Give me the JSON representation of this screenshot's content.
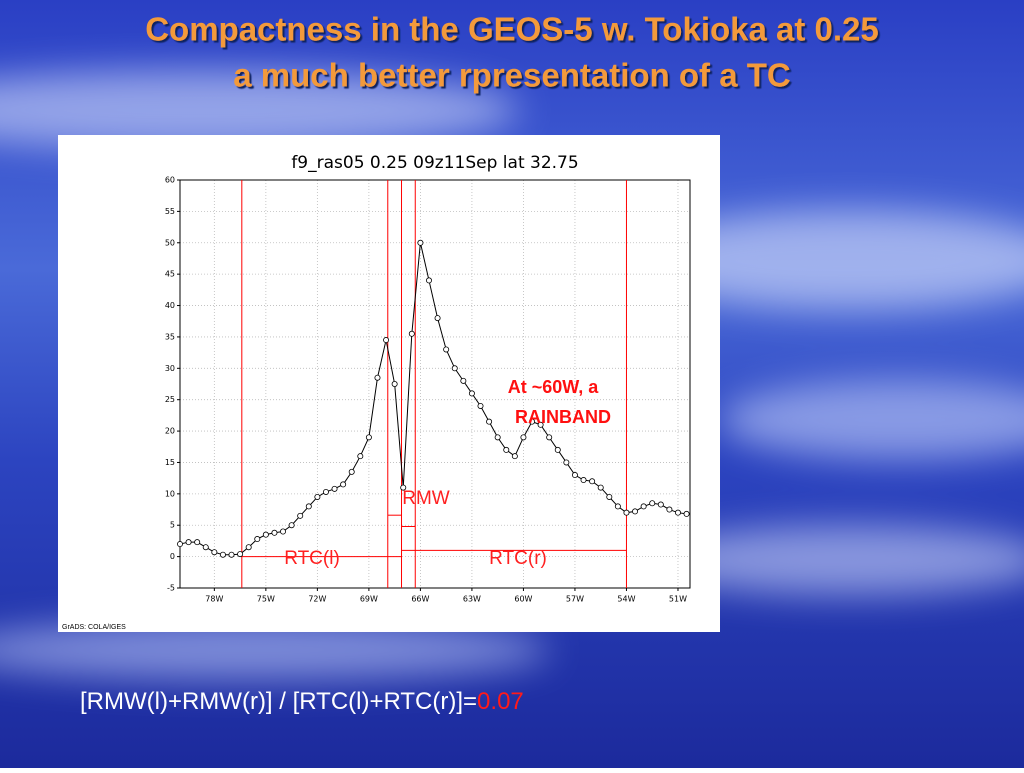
{
  "slide": {
    "title": [
      "Compactness in the GEOS-5 w. Tokioka at 0.25",
      "a much better rpresentation of a TC"
    ],
    "formula": "[RMW(l)+RMW(r)] / [RTC(l)+RTC(r)]=",
    "result": "0.07"
  },
  "chart_data": {
    "type": "line",
    "title": "f9_ras05  0.25  09z11Sep  lat 32.75",
    "credit": "GrADS: COLA/IGES",
    "x": [
      -80,
      -79.5,
      -79,
      -78.5,
      -78,
      -77.5,
      -77,
      -76.5,
      -76,
      -75.5,
      -75,
      -74.5,
      -74,
      -73.5,
      -73,
      -72.5,
      -72,
      -71.5,
      -71,
      -70.5,
      -70,
      -69.5,
      -69,
      -68.5,
      -68,
      -67.5,
      -67,
      -66.5,
      -66,
      -65.5,
      -65,
      -64.5,
      -64,
      -63.5,
      -63,
      -62.5,
      -62,
      -61.5,
      -61,
      -60.5,
      -60,
      -59.5,
      -59,
      -58.5,
      -58,
      -57.5,
      -57,
      -56.5,
      -56,
      -55.5,
      -55,
      -54.5,
      -54,
      -53.5,
      -53,
      -52.5,
      -52,
      -51.5,
      -51,
      -50.5
    ],
    "series": [
      {
        "color": "#000000",
        "values": [
          2,
          2.3,
          2.3,
          1.5,
          0.7,
          0.3,
          0.3,
          0.4,
          1.5,
          2.8,
          3.5,
          3.8,
          4,
          5,
          6.5,
          8,
          9.5,
          10.3,
          10.8,
          11.5,
          13.5,
          16,
          19,
          28.5,
          34.5,
          27.5,
          11,
          35.5,
          50,
          44,
          38,
          33,
          30,
          28,
          26,
          24,
          21.5,
          19,
          17,
          16,
          19,
          21.5,
          21,
          19,
          17,
          15,
          13,
          12.2,
          12,
          11,
          9.5,
          8,
          7,
          7.2,
          8,
          8.5,
          8.3,
          7.5,
          7,
          6.8
        ]
      }
    ],
    "xlim": [
      -80,
      -50.3
    ],
    "ylim": [
      -5,
      60
    ],
    "xticks": [
      {
        "value": -78,
        "label": "78W"
      },
      {
        "value": -75,
        "label": "75W"
      },
      {
        "value": -72,
        "label": "72W"
      },
      {
        "value": -69,
        "label": "69W"
      },
      {
        "value": -66,
        "label": "66W"
      },
      {
        "value": -63,
        "label": "63W"
      },
      {
        "value": -60,
        "label": "60W"
      },
      {
        "value": -57,
        "label": "57W"
      },
      {
        "value": -54,
        "label": "54W"
      },
      {
        "value": -51,
        "label": "51W"
      }
    ],
    "yticks": [
      -5,
      0,
      5,
      10,
      15,
      20,
      25,
      30,
      35,
      40,
      45,
      50,
      55,
      60
    ],
    "grid": true,
    "marker_color": "#ff0000",
    "vlines": [
      -76.4,
      -67.9,
      -67.1,
      -66.3,
      -54
    ],
    "segments": [
      {
        "x": [
          -76.4,
          -67.1
        ],
        "y": 0
      },
      {
        "x": [
          -67.1,
          -54
        ],
        "y": 1
      },
      {
        "x": [
          -67.9,
          -67.1
        ],
        "y": 6.6
      },
      {
        "x": [
          -67.1,
          -66.3
        ],
        "y": 4.8
      }
    ],
    "annotations": [
      "RMW",
      "RTC(l)",
      "RTC(r)",
      "At ~60W, a",
      "RAINBAND"
    ]
  }
}
